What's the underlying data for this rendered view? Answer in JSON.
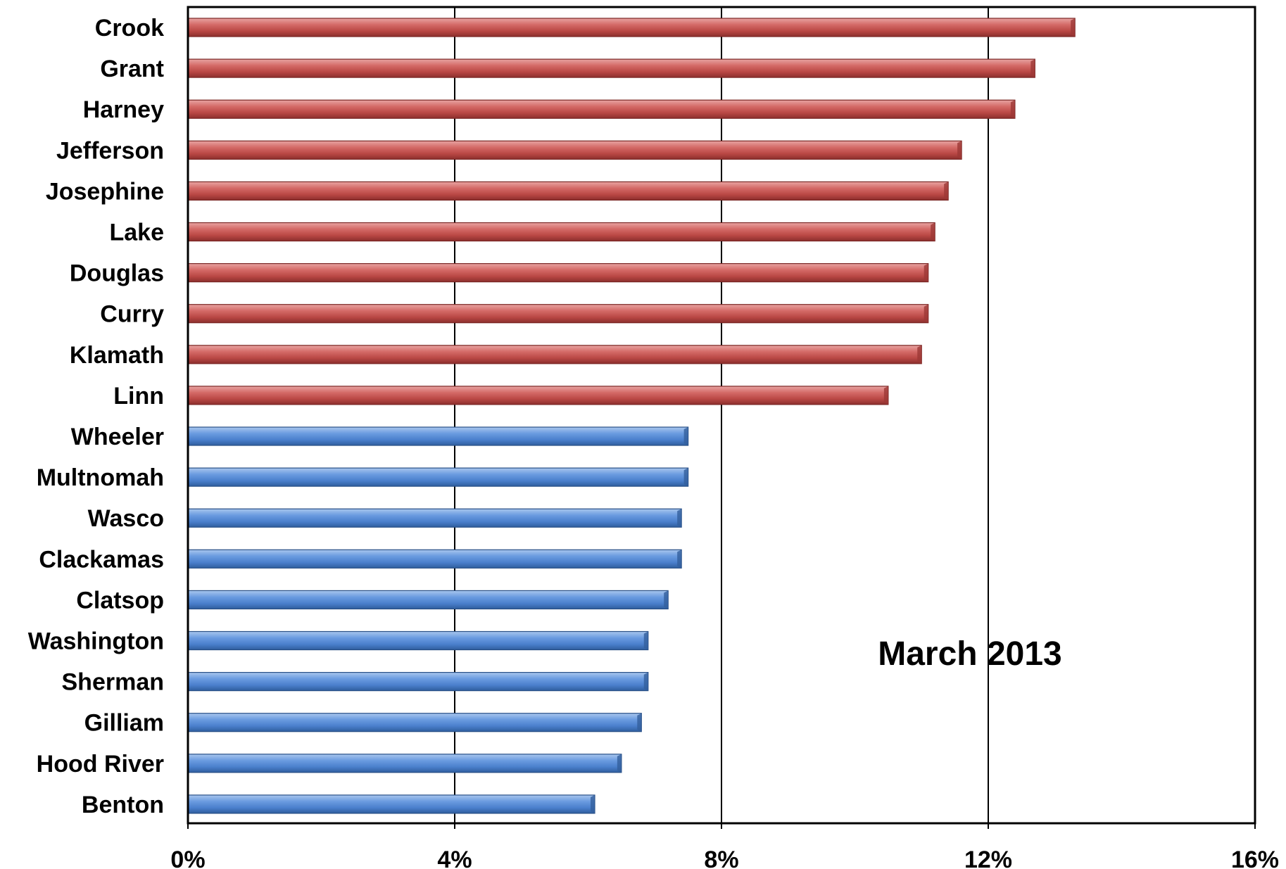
{
  "chart_data": {
    "type": "bar",
    "orientation": "horizontal",
    "annotation": "March 2013",
    "xlabel": "",
    "ylabel": "",
    "xlim": [
      0,
      16
    ],
    "x_ticks": [
      0,
      4,
      8,
      12,
      16
    ],
    "x_tick_labels": [
      "0%",
      "4%",
      "8%",
      "12%",
      "16%"
    ],
    "grid": true,
    "categories": [
      "Crook",
      "Grant",
      "Harney",
      "Jefferson",
      "Josephine",
      "Lake",
      "Douglas",
      "Curry",
      "Klamath",
      "Linn",
      "Wheeler",
      "Multnomah",
      "Wasco",
      "Clackamas",
      "Clatsop",
      "Washington",
      "Sherman",
      "Gilliam",
      "Hood River",
      "Benton"
    ],
    "values": [
      13.3,
      12.7,
      12.4,
      11.6,
      11.4,
      11.2,
      11.1,
      11.1,
      11.0,
      10.5,
      7.5,
      7.5,
      7.4,
      7.4,
      7.2,
      6.9,
      6.9,
      6.8,
      6.5,
      6.1
    ],
    "bar_colors": [
      "#c0504d",
      "#c0504d",
      "#c0504d",
      "#c0504d",
      "#c0504d",
      "#c0504d",
      "#c0504d",
      "#c0504d",
      "#c0504d",
      "#c0504d",
      "#4f81bd",
      "#4f81bd",
      "#4f81bd",
      "#4f81bd",
      "#4f81bd",
      "#4f81bd",
      "#4f81bd",
      "#4f81bd",
      "#4f81bd",
      "#4f81bd"
    ]
  }
}
